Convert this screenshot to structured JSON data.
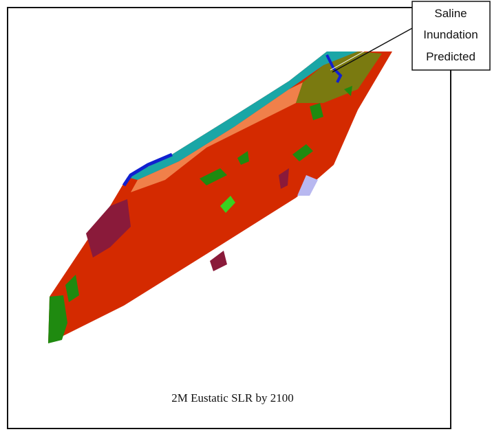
{
  "callout": {
    "lines": [
      "Saline",
      "Inundation",
      "Predicted"
    ]
  },
  "caption": "2M Eustatic SLR by 2100"
}
